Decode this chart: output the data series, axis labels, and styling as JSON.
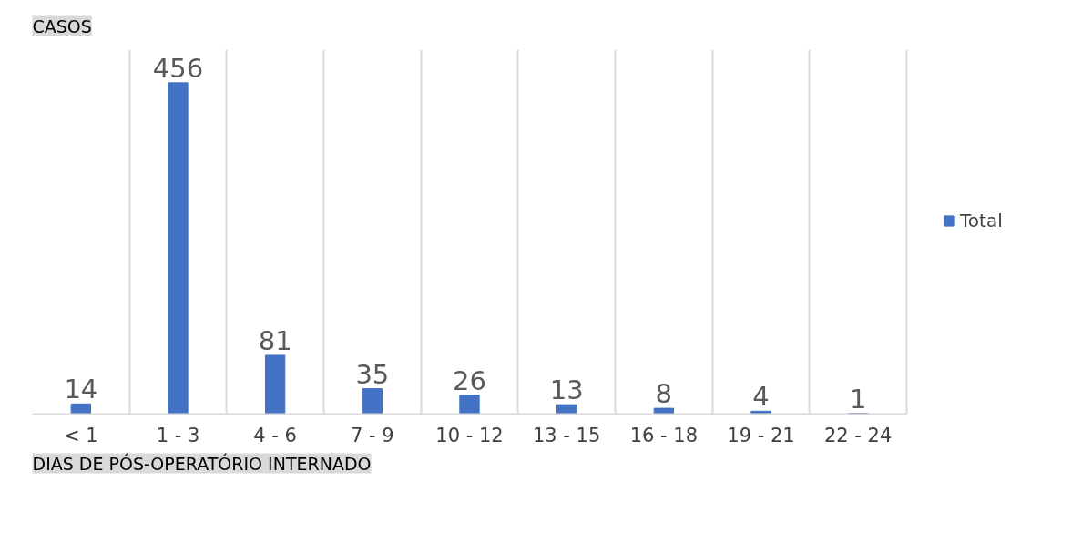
{
  "chart_data": {
    "type": "bar",
    "ylabel": "CASOS",
    "xlabel": "DIAS DE PÓS-OPERATÓRIO INTERNADO",
    "categories": [
      "< 1",
      "1 - 3",
      "4 - 6",
      "7 - 9",
      "10 - 12",
      "13 - 15",
      "16 - 18",
      "19 - 21",
      "22 - 24"
    ],
    "series": [
      {
        "name": "Total",
        "color": "#4472c4",
        "values": [
          14,
          456,
          81,
          35,
          26,
          13,
          8,
          4,
          1
        ]
      }
    ],
    "data_labels": true,
    "grid": "x",
    "legend": "right"
  }
}
